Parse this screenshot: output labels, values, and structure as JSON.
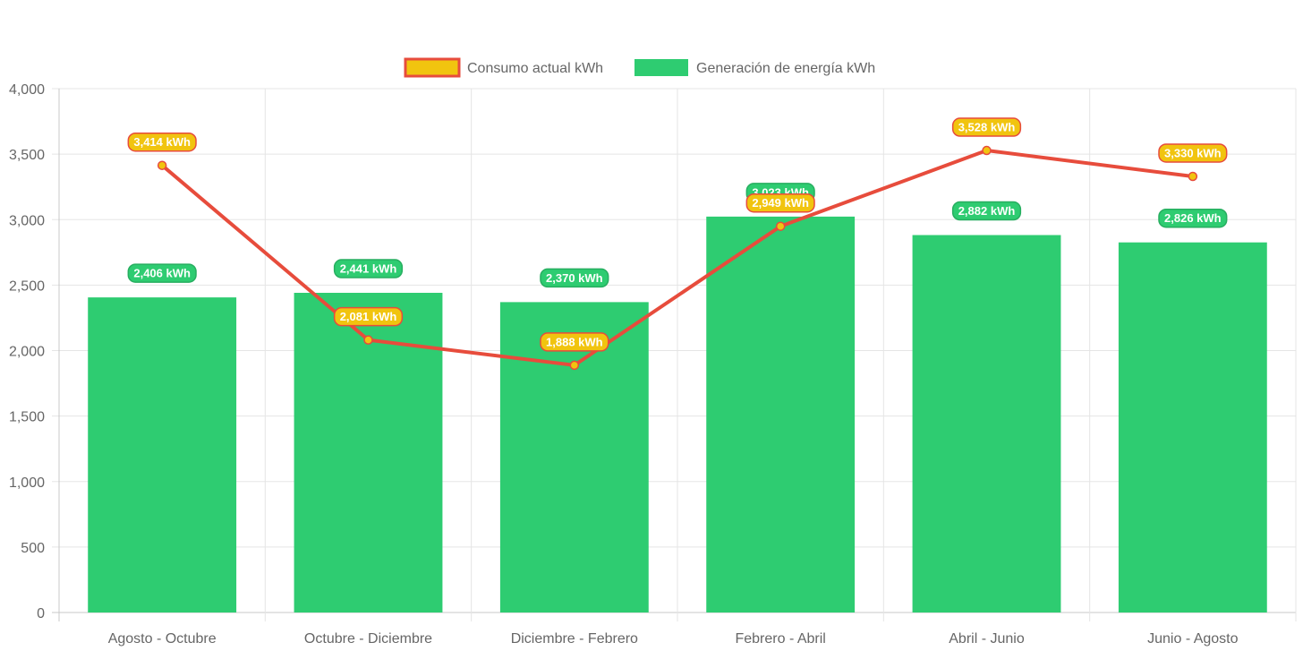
{
  "chart_data": {
    "type": "bar",
    "categories": [
      "Agosto - Octubre",
      "Octubre - Diciembre",
      "Diciembre - Febrero",
      "Febrero - Abril",
      "Abril - Junio",
      "Junio - Agosto"
    ],
    "series": [
      {
        "name": "Consumo actual kWh",
        "type": "line",
        "values": [
          3414,
          2081,
          1888,
          2949,
          3528,
          3330
        ],
        "labels": [
          "3,414 kWh",
          "2,081 kWh",
          "1,888 kWh",
          "2,949 kWh",
          "3,528 kWh",
          "3,330 kWh"
        ],
        "color": "#e74c3c",
        "fill": "#f1c40f"
      },
      {
        "name": "Generación de energía kWh",
        "type": "bar",
        "values": [
          2406,
          2441,
          2370,
          3023,
          2882,
          2826
        ],
        "labels": [
          "2,406 kWh",
          "2,441 kWh",
          "2,370 kWh",
          "3,023 kWh",
          "2,882 kWh",
          "2,826 kWh"
        ],
        "color": "#2ecc71"
      }
    ],
    "ylim": [
      0,
      4000
    ],
    "yticks": [
      0,
      500,
      1000,
      1500,
      2000,
      2500,
      3000,
      3500,
      4000
    ],
    "ytick_labels": [
      "0",
      "500",
      "1,000",
      "1,500",
      "2,000",
      "2,500",
      "3,000",
      "3,500",
      "4,000"
    ],
    "title": "",
    "xlabel": "",
    "ylabel": "",
    "grid": true,
    "legend": "top-center"
  }
}
